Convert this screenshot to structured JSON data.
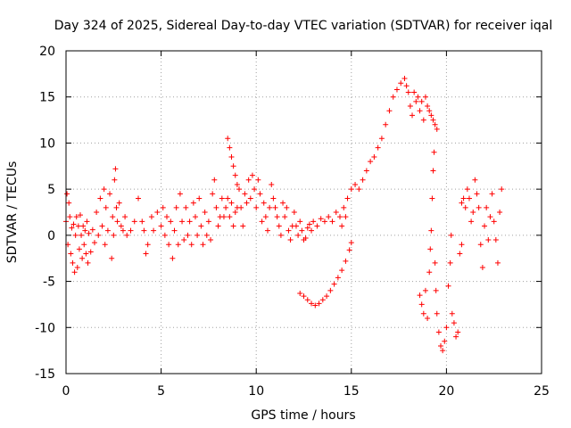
{
  "chart_data": {
    "type": "scatter",
    "title": "Day 324 of 2025, Sidereal Day-to-day VTEC variation (SDTVAR) for receiver iqal",
    "xlabel": "GPS time / hours",
    "ylabel": "SDTVAR / TECUs",
    "xlim": [
      0,
      25
    ],
    "ylim": [
      -15,
      20
    ],
    "xticks": [
      0,
      5,
      10,
      15,
      20,
      25
    ],
    "yticks": [
      -15,
      -10,
      -5,
      0,
      5,
      10,
      15,
      20
    ],
    "grid": true,
    "marker": "+",
    "color": "#ff0000",
    "series": [
      {
        "name": "SDTVAR",
        "points": [
          [
            0.0,
            1.5
          ],
          [
            0.05,
            4.5
          ],
          [
            0.1,
            -1.0
          ],
          [
            0.15,
            3.5
          ],
          [
            0.2,
            2.0
          ],
          [
            0.25,
            -2.0
          ],
          [
            0.3,
            0.8
          ],
          [
            0.35,
            -3.0
          ],
          [
            0.4,
            1.2
          ],
          [
            0.45,
            -4.0
          ],
          [
            0.5,
            0.0
          ],
          [
            0.55,
            2.0
          ],
          [
            0.6,
            -3.5
          ],
          [
            0.65,
            1.0
          ],
          [
            0.7,
            -1.5
          ],
          [
            0.75,
            2.2
          ],
          [
            0.8,
            0.0
          ],
          [
            0.85,
            -2.5
          ],
          [
            0.9,
            1.0
          ],
          [
            0.95,
            -1.0
          ],
          [
            1.0,
            0.5
          ],
          [
            1.05,
            -2.0
          ],
          [
            1.1,
            1.5
          ],
          [
            1.15,
            -3.0
          ],
          [
            1.2,
            0.2
          ],
          [
            1.3,
            -1.8
          ],
          [
            1.4,
            0.6
          ],
          [
            1.5,
            -0.8
          ],
          [
            1.6,
            2.5
          ],
          [
            1.7,
            0.0
          ],
          [
            1.8,
            4.0
          ],
          [
            1.9,
            1.0
          ],
          [
            2.0,
            5.0
          ],
          [
            2.05,
            -1.0
          ],
          [
            2.1,
            3.0
          ],
          [
            2.2,
            0.5
          ],
          [
            2.3,
            4.5
          ],
          [
            2.4,
            -2.5
          ],
          [
            2.45,
            2.0
          ],
          [
            2.5,
            0.0
          ],
          [
            2.55,
            6.0
          ],
          [
            2.6,
            7.2
          ],
          [
            2.65,
            3.0
          ],
          [
            2.7,
            1.5
          ],
          [
            2.8,
            3.5
          ],
          [
            2.9,
            1.0
          ],
          [
            3.0,
            0.5
          ],
          [
            3.1,
            2.0
          ],
          [
            3.2,
            0.0
          ],
          [
            3.4,
            0.5
          ],
          [
            3.6,
            1.5
          ],
          [
            3.8,
            4.0
          ],
          [
            4.0,
            1.5
          ],
          [
            4.1,
            0.5
          ],
          [
            4.2,
            -2.0
          ],
          [
            4.3,
            -1.0
          ],
          [
            4.5,
            2.0
          ],
          [
            4.6,
            0.5
          ],
          [
            4.8,
            2.5
          ],
          [
            5.0,
            1.0
          ],
          [
            5.1,
            3.0
          ],
          [
            5.2,
            0.0
          ],
          [
            5.3,
            2.0
          ],
          [
            5.4,
            -1.0
          ],
          [
            5.5,
            1.5
          ],
          [
            5.6,
            -2.5
          ],
          [
            5.7,
            0.5
          ],
          [
            5.8,
            3.0
          ],
          [
            5.9,
            -1.0
          ],
          [
            6.0,
            4.5
          ],
          [
            6.1,
            1.5
          ],
          [
            6.2,
            -0.5
          ],
          [
            6.3,
            3.0
          ],
          [
            6.4,
            0.0
          ],
          [
            6.5,
            1.5
          ],
          [
            6.6,
            -1.0
          ],
          [
            6.7,
            3.5
          ],
          [
            6.8,
            2.0
          ],
          [
            6.9,
            0.0
          ],
          [
            7.0,
            4.0
          ],
          [
            7.1,
            1.0
          ],
          [
            7.2,
            -1.0
          ],
          [
            7.3,
            2.5
          ],
          [
            7.4,
            0.0
          ],
          [
            7.5,
            1.5
          ],
          [
            7.6,
            -0.5
          ],
          [
            7.7,
            4.5
          ],
          [
            7.8,
            6.0
          ],
          [
            7.9,
            3.0
          ],
          [
            8.0,
            1.0
          ],
          [
            8.1,
            2.0
          ],
          [
            8.2,
            4.0
          ],
          [
            8.3,
            2.0
          ],
          [
            8.4,
            3.0
          ],
          [
            8.5,
            10.5
          ],
          [
            8.6,
            9.5
          ],
          [
            8.7,
            8.5
          ],
          [
            8.8,
            7.5
          ],
          [
            8.9,
            6.5
          ],
          [
            9.0,
            5.5
          ],
          [
            8.5,
            4.0
          ],
          [
            8.6,
            2.0
          ],
          [
            8.7,
            3.5
          ],
          [
            8.8,
            1.0
          ],
          [
            8.9,
            2.5
          ],
          [
            9.0,
            3.0
          ],
          [
            9.1,
            5.0
          ],
          [
            9.2,
            3.0
          ],
          [
            9.3,
            1.0
          ],
          [
            9.4,
            4.5
          ],
          [
            9.5,
            3.5
          ],
          [
            9.6,
            6.0
          ],
          [
            9.7,
            4.0
          ],
          [
            9.8,
            6.5
          ],
          [
            9.9,
            5.0
          ],
          [
            10.0,
            3.0
          ],
          [
            10.1,
            6.0
          ],
          [
            10.2,
            4.5
          ],
          [
            10.3,
            1.5
          ],
          [
            10.4,
            3.5
          ],
          [
            10.5,
            2.0
          ],
          [
            10.6,
            0.5
          ],
          [
            10.7,
            3.0
          ],
          [
            10.8,
            5.5
          ],
          [
            10.9,
            4.0
          ],
          [
            11.0,
            3.0
          ],
          [
            11.1,
            2.0
          ],
          [
            11.2,
            1.0
          ],
          [
            11.3,
            0.0
          ],
          [
            11.4,
            3.5
          ],
          [
            11.5,
            2.0
          ],
          [
            11.6,
            3.0
          ],
          [
            11.7,
            0.5
          ],
          [
            11.8,
            -0.5
          ],
          [
            11.9,
            1.0
          ],
          [
            12.0,
            2.5
          ],
          [
            12.1,
            1.0
          ],
          [
            12.2,
            0.0
          ],
          [
            12.3,
            1.5
          ],
          [
            12.4,
            0.5
          ],
          [
            12.5,
            -0.5
          ],
          [
            12.6,
            -0.3
          ],
          [
            12.7,
            0.8
          ],
          [
            12.8,
            1.2
          ],
          [
            12.9,
            0.5
          ],
          [
            13.0,
            1.5
          ],
          [
            13.2,
            1.0
          ],
          [
            13.4,
            1.8
          ],
          [
            13.6,
            1.5
          ],
          [
            13.8,
            2.0
          ],
          [
            14.0,
            1.5
          ],
          [
            14.2,
            2.5
          ],
          [
            14.4,
            2.0
          ],
          [
            14.6,
            3.0
          ],
          [
            14.8,
            4.0
          ],
          [
            15.0,
            5.0
          ],
          [
            14.7,
            2.0
          ],
          [
            14.5,
            1.0
          ],
          [
            12.3,
            -6.3
          ],
          [
            12.5,
            -6.6
          ],
          [
            12.7,
            -7.0
          ],
          [
            12.9,
            -7.4
          ],
          [
            13.1,
            -7.6
          ],
          [
            13.3,
            -7.4
          ],
          [
            13.5,
            -7.0
          ],
          [
            13.7,
            -6.6
          ],
          [
            13.9,
            -6.0
          ],
          [
            14.1,
            -5.3
          ],
          [
            14.3,
            -4.6
          ],
          [
            14.5,
            -3.8
          ],
          [
            14.7,
            -2.8
          ],
          [
            14.9,
            -1.6
          ],
          [
            15.0,
            -0.8
          ],
          [
            15.2,
            5.5
          ],
          [
            15.4,
            5.0
          ],
          [
            15.6,
            6.0
          ],
          [
            15.8,
            7.0
          ],
          [
            16.0,
            8.0
          ],
          [
            16.2,
            8.5
          ],
          [
            16.4,
            9.5
          ],
          [
            16.6,
            10.5
          ],
          [
            16.8,
            12.0
          ],
          [
            17.0,
            13.5
          ],
          [
            17.2,
            15.0
          ],
          [
            17.4,
            15.8
          ],
          [
            17.6,
            16.5
          ],
          [
            17.8,
            17.0
          ],
          [
            17.9,
            16.2
          ],
          [
            18.0,
            15.5
          ],
          [
            18.1,
            14.0
          ],
          [
            18.2,
            13.0
          ],
          [
            18.3,
            15.5
          ],
          [
            18.4,
            14.5
          ],
          [
            18.5,
            15.0
          ],
          [
            18.6,
            13.5
          ],
          [
            18.7,
            14.5
          ],
          [
            18.8,
            12.5
          ],
          [
            18.9,
            15.0
          ],
          [
            19.0,
            14.0
          ],
          [
            19.1,
            13.5
          ],
          [
            19.2,
            13.0
          ],
          [
            19.3,
            12.5
          ],
          [
            19.4,
            12.0
          ],
          [
            19.5,
            11.5
          ],
          [
            18.6,
            -6.5
          ],
          [
            18.7,
            -7.5
          ],
          [
            18.8,
            -8.5
          ],
          [
            18.9,
            -6.0
          ],
          [
            19.0,
            -9.0
          ],
          [
            19.1,
            -4.0
          ],
          [
            19.15,
            -1.5
          ],
          [
            19.2,
            0.5
          ],
          [
            19.25,
            4.0
          ],
          [
            19.3,
            7.0
          ],
          [
            19.35,
            9.0
          ],
          [
            19.4,
            -3.0
          ],
          [
            19.45,
            -6.0
          ],
          [
            19.5,
            -8.5
          ],
          [
            19.6,
            -10.5
          ],
          [
            19.7,
            -12.0
          ],
          [
            19.8,
            -12.5
          ],
          [
            19.9,
            -11.5
          ],
          [
            20.0,
            -10.0
          ],
          [
            20.1,
            -5.5
          ],
          [
            20.2,
            -3.0
          ],
          [
            20.25,
            0.0
          ],
          [
            20.3,
            -8.5
          ],
          [
            20.4,
            -9.5
          ],
          [
            20.5,
            -11.0
          ],
          [
            20.6,
            -10.5
          ],
          [
            20.7,
            -2.0
          ],
          [
            20.8,
            -1.0
          ],
          [
            20.8,
            3.5
          ],
          [
            20.9,
            4.0
          ],
          [
            21.0,
            3.0
          ],
          [
            21.1,
            5.0
          ],
          [
            21.2,
            4.0
          ],
          [
            21.3,
            1.5
          ],
          [
            21.4,
            2.5
          ],
          [
            21.5,
            6.0
          ],
          [
            21.6,
            4.5
          ],
          [
            21.7,
            3.0
          ],
          [
            21.8,
            -1.0
          ],
          [
            21.9,
            -3.5
          ],
          [
            22.0,
            1.0
          ],
          [
            22.1,
            3.0
          ],
          [
            22.2,
            -0.5
          ],
          [
            22.3,
            2.0
          ],
          [
            22.4,
            4.5
          ],
          [
            22.5,
            1.5
          ],
          [
            22.6,
            -0.5
          ],
          [
            22.7,
            -3.0
          ],
          [
            22.8,
            2.5
          ],
          [
            22.9,
            5.0
          ]
        ]
      }
    ]
  }
}
